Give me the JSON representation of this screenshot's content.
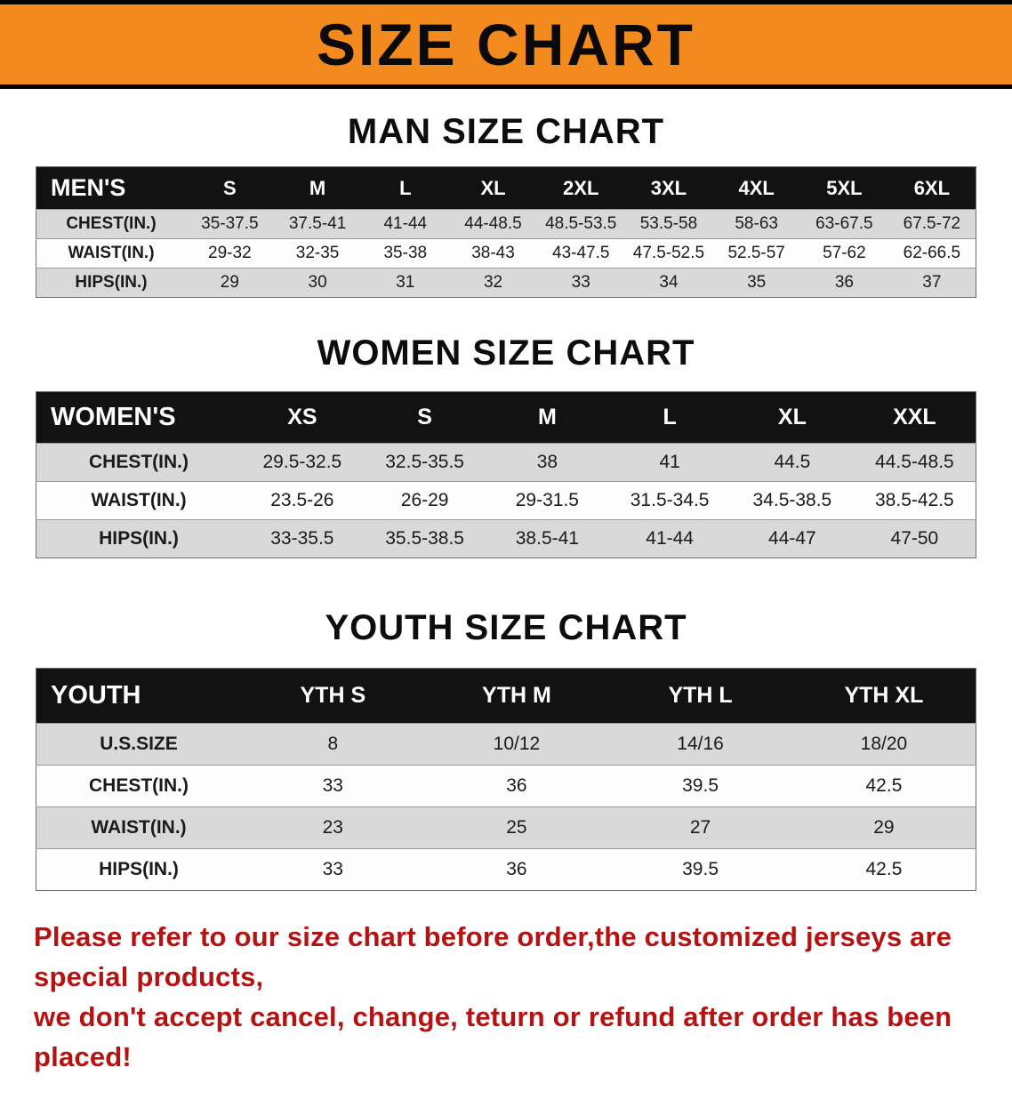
{
  "banner": {
    "title": "SIZE CHART"
  },
  "colors": {
    "banner_bg": "#F28A1E",
    "header_bg": "#121212",
    "stripe_gray": "#D9D9D9",
    "disclaimer_red": "#B51212"
  },
  "men": {
    "heading": "MAN SIZE CHART",
    "table": {
      "header": [
        "MEN'S",
        "S",
        "M",
        "L",
        "XL",
        "2XL",
        "3XL",
        "4XL",
        "5XL",
        "6XL"
      ],
      "rows": [
        [
          "CHEST(IN.)",
          "35-37.5",
          "37.5-41",
          "41-44",
          "44-48.5",
          "48.5-53.5",
          "53.5-58",
          "58-63",
          "63-67.5",
          "67.5-72"
        ],
        [
          "WAIST(IN.)",
          "29-32",
          "32-35",
          "35-38",
          "38-43",
          "43-47.5",
          "47.5-52.5",
          "52.5-57",
          "57-62",
          "62-66.5"
        ],
        [
          "HIPS(IN.)",
          "29",
          "30",
          "31",
          "32",
          "33",
          "34",
          "35",
          "36",
          "37"
        ]
      ]
    }
  },
  "women": {
    "heading": "WOMEN SIZE CHART",
    "table": {
      "header": [
        "WOMEN'S",
        "XS",
        "S",
        "M",
        "L",
        "XL",
        "XXL"
      ],
      "rows": [
        [
          "CHEST(IN.)",
          "29.5-32.5",
          "32.5-35.5",
          "38",
          "41",
          "44.5",
          "44.5-48.5"
        ],
        [
          "WAIST(IN.)",
          "23.5-26",
          "26-29",
          "29-31.5",
          "31.5-34.5",
          "34.5-38.5",
          "38.5-42.5"
        ],
        [
          "HIPS(IN.)",
          "33-35.5",
          "35.5-38.5",
          "38.5-41",
          "41-44",
          "44-47",
          "47-50"
        ]
      ]
    }
  },
  "youth": {
    "heading": "YOUTH SIZE CHART",
    "table": {
      "header": [
        "YOUTH",
        "YTH S",
        "YTH M",
        "YTH L",
        "YTH XL"
      ],
      "rows": [
        [
          "U.S.SIZE",
          "8",
          "10/12",
          "14/16",
          "18/20"
        ],
        [
          "CHEST(IN.)",
          "33",
          "36",
          "39.5",
          "42.5"
        ],
        [
          "WAIST(IN.)",
          "23",
          "25",
          "27",
          "29"
        ],
        [
          "HIPS(IN.)",
          "33",
          "36",
          "39.5",
          "42.5"
        ]
      ]
    }
  },
  "footer": {
    "line1": "Please refer to our size chart before order,the customized jerseys are special products,",
    "line2": "we don't accept cancel, change, teturn or refund after order has been placed!"
  }
}
